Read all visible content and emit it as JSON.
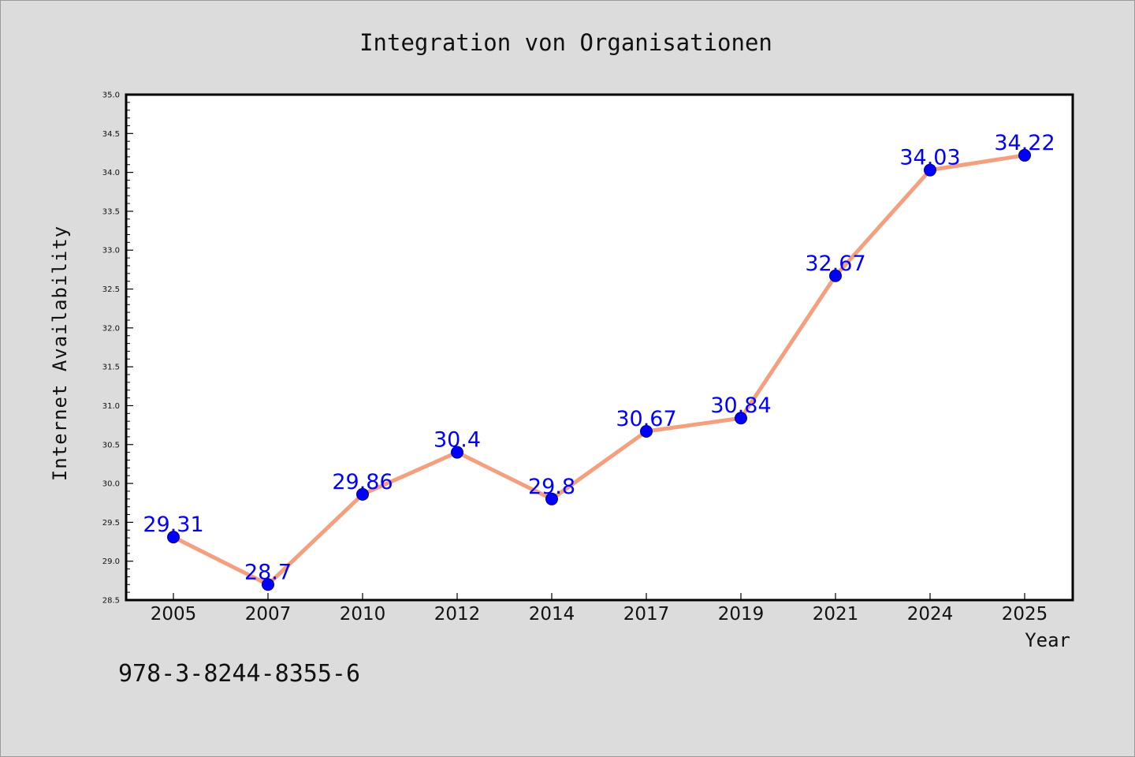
{
  "chart_data": {
    "type": "line",
    "title": "Integration von Organisationen",
    "xlabel": "Year",
    "ylabel": "Internet Availability",
    "categories": [
      "2005",
      "2007",
      "2010",
      "2012",
      "2014",
      "2017",
      "2019",
      "2021",
      "2024",
      "2025"
    ],
    "series": [
      {
        "values": [
          29.31,
          28.7,
          29.86,
          30.4,
          29.8,
          30.67,
          30.84,
          32.67,
          34.03,
          34.22
        ],
        "labels": [
          "29.31",
          "28.7",
          "29.86",
          "30.4",
          "29.8",
          "30.67",
          "30.84",
          "32.67",
          "34.03",
          "34.22"
        ]
      }
    ],
    "ylim": [
      28.5,
      35.0
    ],
    "yticks": [
      "28.5",
      "29.0",
      "29.5",
      "30.0",
      "30.5",
      "31.0",
      "31.5",
      "32.0",
      "32.5",
      "33.0",
      "33.5",
      "34.0",
      "34.5",
      "35.0"
    ],
    "grid": false,
    "line_color": "#f4a07e",
    "marker_color": "#0000ff",
    "label_color": "#0000ff",
    "annotation": "978-3-8244-8355-6"
  }
}
